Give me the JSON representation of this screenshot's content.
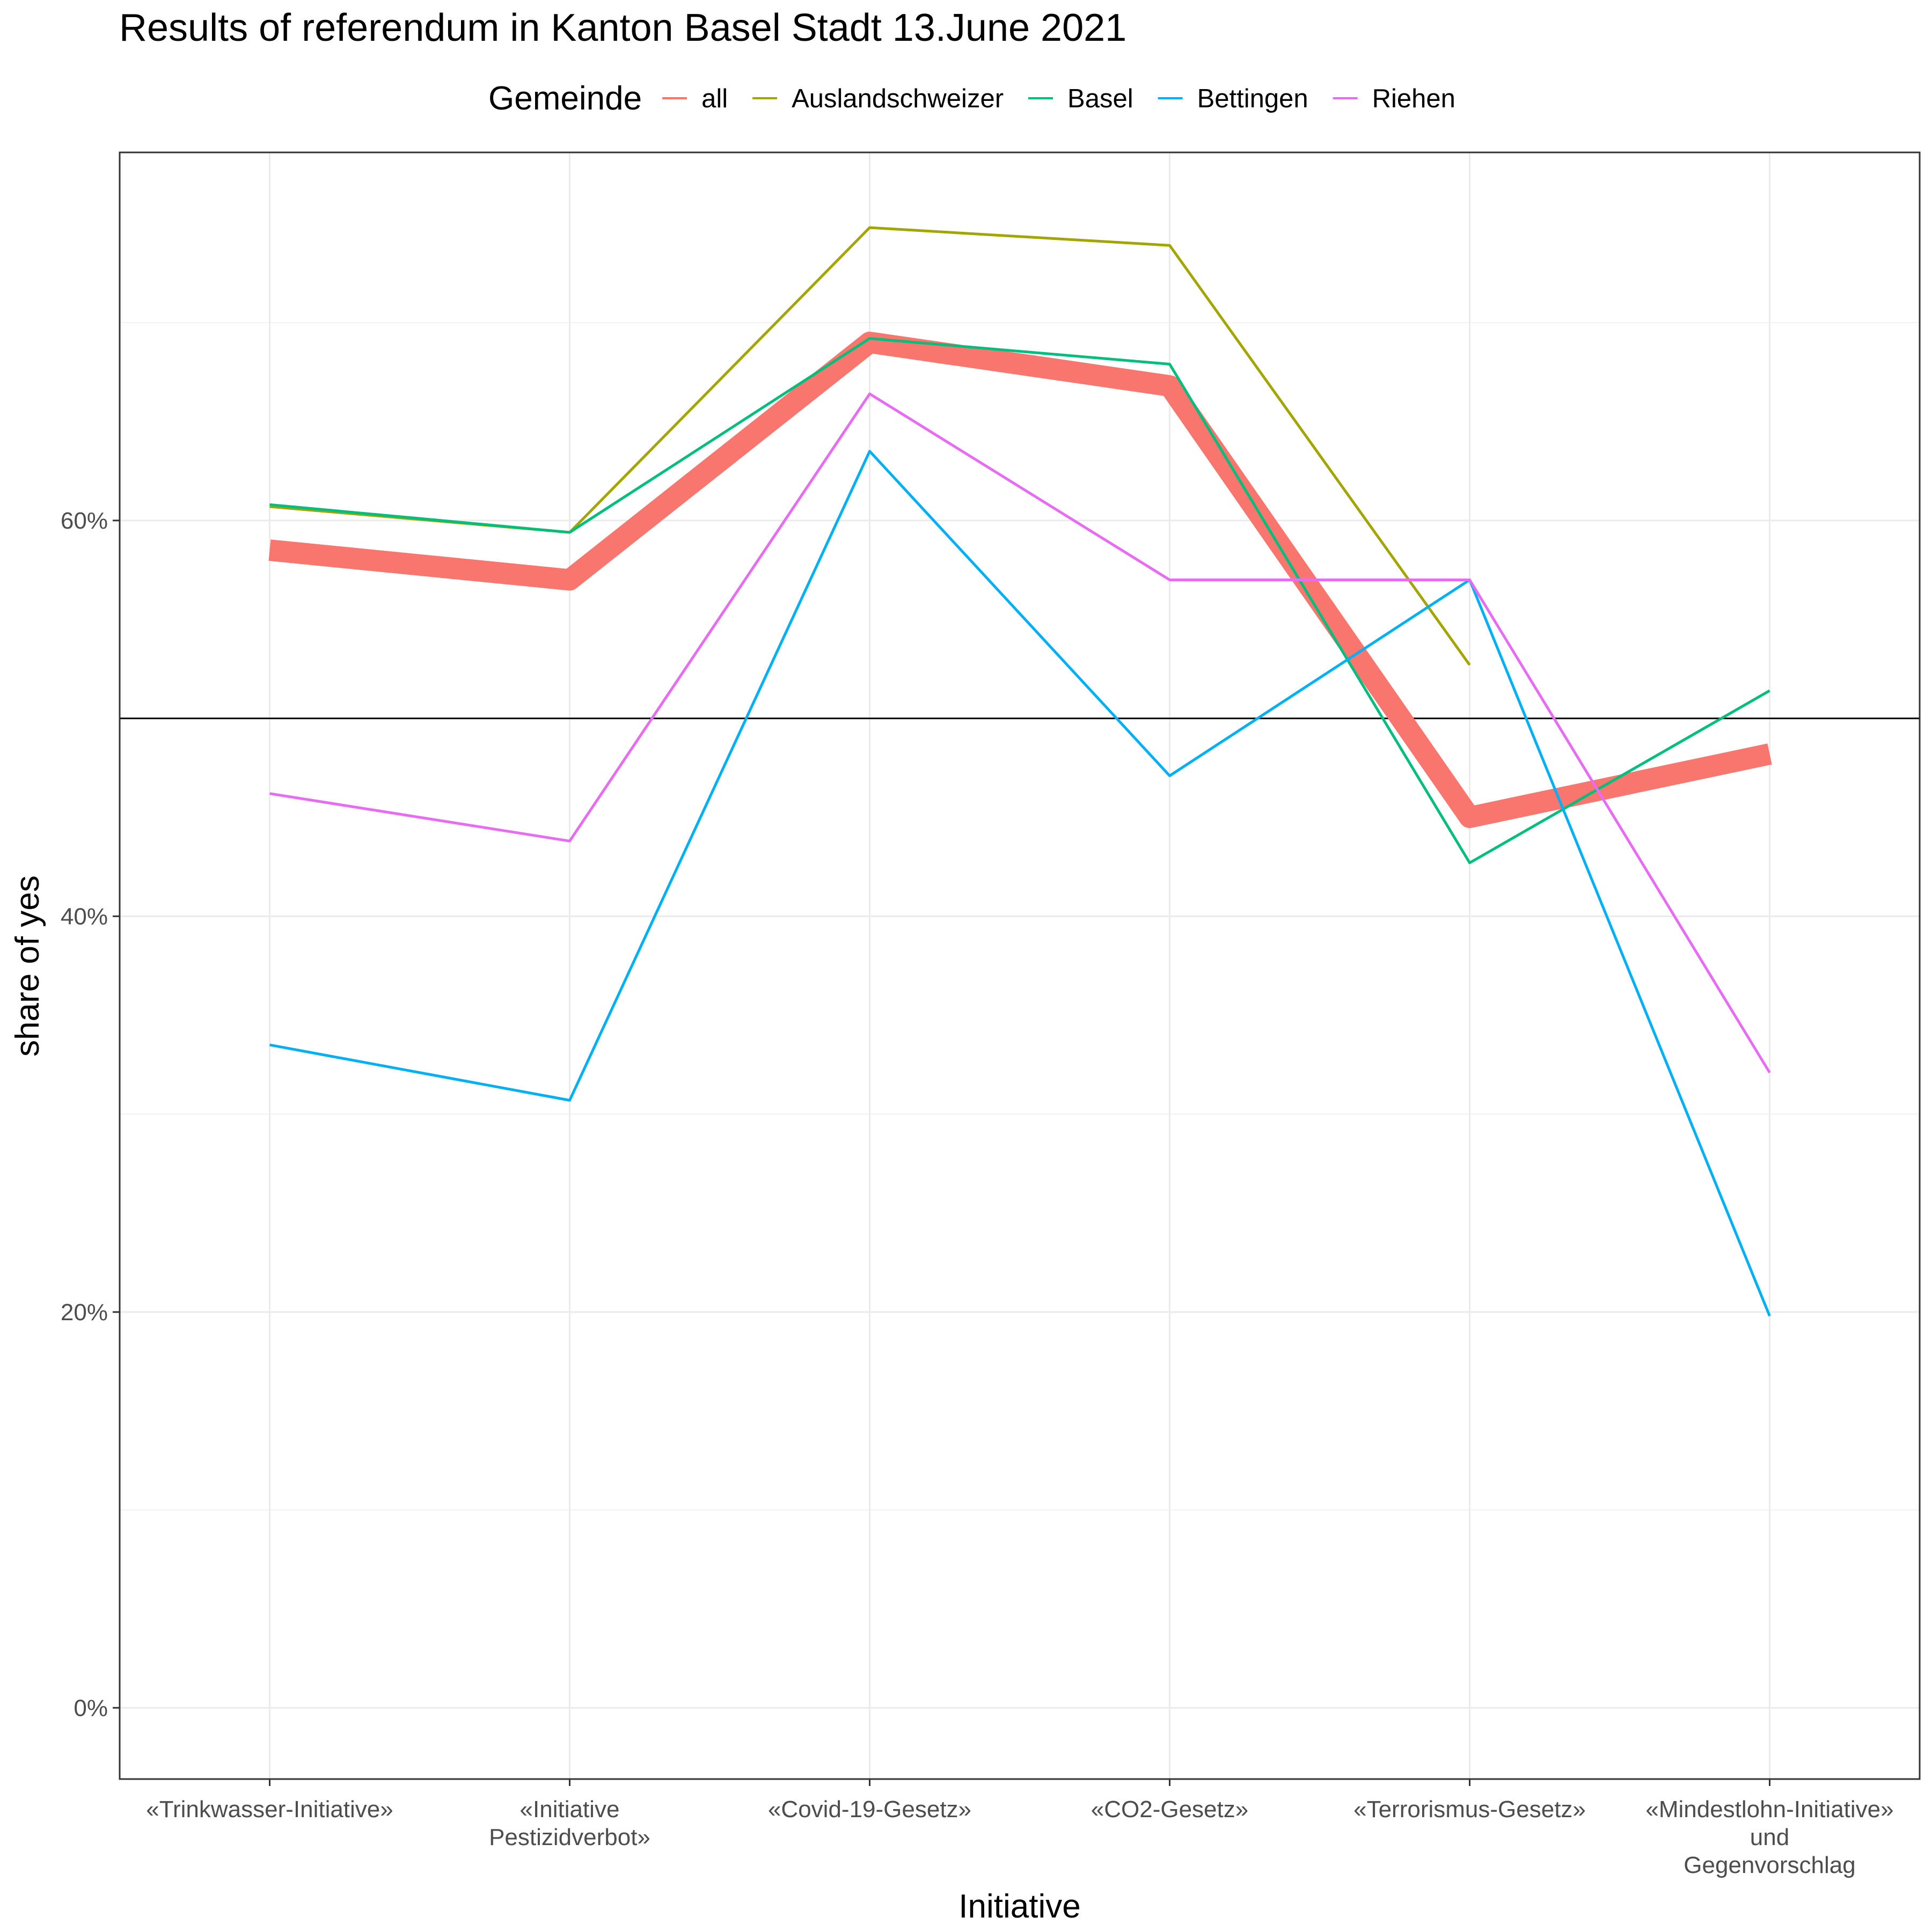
{
  "chart_data": {
    "type": "line",
    "title": "Results of referendum in Kanton Basel Stadt 13.June 2021",
    "xlabel": "Initiative",
    "ylabel": "share of yes",
    "categories": [
      "«Trinkwasser-Initiative»",
      "«Initiative Pestizidverbot»",
      "«Covid-19-Gesetz»",
      "«CO2-Gesetz»",
      "«Terrorismus-Gesetz»",
      "«Mindestlohn-Initiative» und Gegenvorschlag"
    ],
    "category_lines": [
      [
        "«Trinkwasser-Initiative»"
      ],
      [
        "«Initiative",
        "Pestizidverbot»"
      ],
      [
        "«Covid-19-Gesetz»"
      ],
      [
        "«CO2-Gesetz»"
      ],
      [
        "«Terrorismus-Gesetz»"
      ],
      [
        "«Mindestlohn-Initiative»",
        "und",
        "Gegenvorschlag"
      ]
    ],
    "ylim": [
      -0.036,
      0.786
    ],
    "yticks": [
      0,
      0.2,
      0.4,
      0.6
    ],
    "ytick_labels": [
      "0%",
      "20%",
      "40%",
      "60%"
    ],
    "reference_line": {
      "y": 0.5,
      "color": "#000000"
    },
    "grid": true,
    "legend": {
      "title": "Gemeinde",
      "position": "top"
    },
    "series": [
      {
        "name": "all",
        "color": "#F8766D",
        "emphasis": true,
        "values": [
          0.585,
          0.57,
          0.69,
          0.668,
          0.45,
          0.482
        ]
      },
      {
        "name": "Auslandschweizer",
        "color": "#A3A500",
        "values": [
          0.607,
          0.594,
          0.748,
          0.739,
          0.527,
          null
        ]
      },
      {
        "name": "Basel",
        "color": "#00BF7D",
        "values": [
          0.608,
          0.594,
          0.692,
          0.679,
          0.427,
          0.514
        ]
      },
      {
        "name": "Bettingen",
        "color": "#00B0F6",
        "values": [
          0.335,
          0.307,
          0.635,
          0.471,
          0.57,
          0.198
        ]
      },
      {
        "name": "Riehen",
        "color": "#E76BF3",
        "values": [
          0.462,
          0.438,
          0.664,
          0.57,
          0.57,
          0.321
        ]
      }
    ]
  }
}
